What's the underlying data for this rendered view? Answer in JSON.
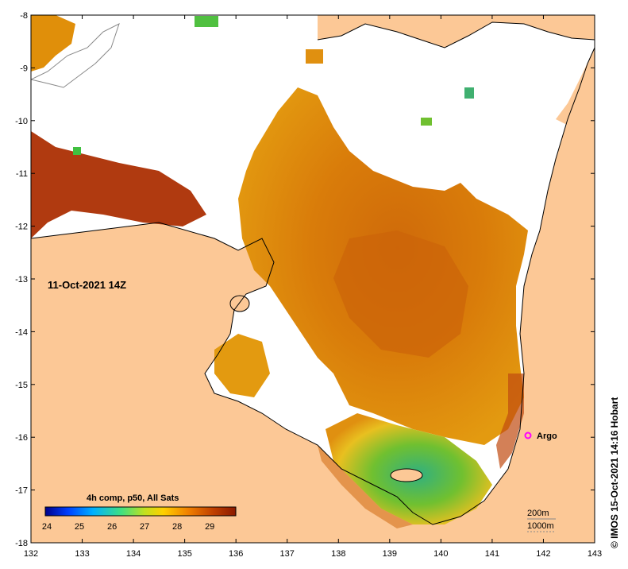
{
  "map": {
    "date_label": "11-Oct-2021 14Z",
    "credit": "© IMOS 15-Oct-2021 14:16 Hobart",
    "lon_ticks": [
      "132",
      "133",
      "134",
      "135",
      "136",
      "137",
      "138",
      "139",
      "140",
      "141",
      "142",
      "143"
    ],
    "lat_ticks": [
      "-8",
      "-9",
      "-10",
      "-11",
      "-12",
      "-13",
      "-14",
      "-15",
      "-16",
      "-17",
      "-18"
    ],
    "argo": {
      "label": "Argo",
      "color": "#ff00ff"
    },
    "isobaths": [
      "200m",
      "1000m"
    ],
    "colors": {
      "land": "#fcc896",
      "no_data": "#ffffff",
      "warm_dark": "#b03a10",
      "warm": "#d2720a",
      "mid": "#e08f0a",
      "cool": "#f0c020",
      "green": "#70c030",
      "teal": "#30b080"
    }
  },
  "legend": {
    "title": "4h comp, p50, All Sats",
    "labels": [
      "24",
      "25",
      "26",
      "27",
      "28",
      "29"
    ],
    "colors": [
      "#00008b",
      "#0040ff",
      "#00c0ff",
      "#40e080",
      "#c0e020",
      "#ffc000",
      "#f08000",
      "#c04000",
      "#8b1a00"
    ]
  }
}
